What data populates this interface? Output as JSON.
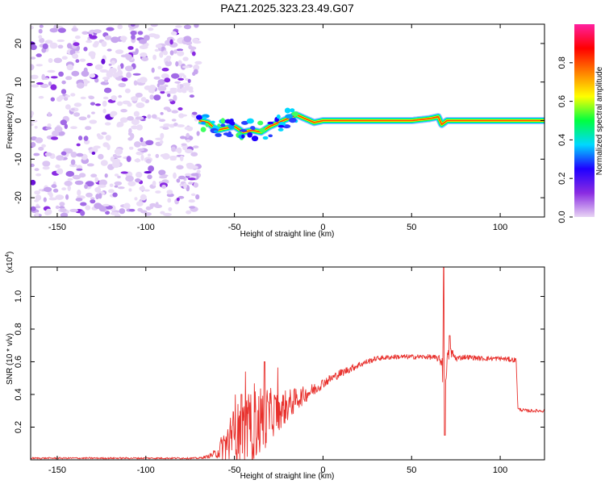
{
  "title": "PAZ1.2025.323.23.49.G07",
  "chart_data": [
    {
      "type": "heatmap",
      "name": "spectrogram",
      "xlabel": "Height of straight line (km)",
      "ylabel": "Frequency (Hz)",
      "xlim": [
        -165,
        125
      ],
      "ylim": [
        -25,
        25
      ],
      "xticks": [
        -150,
        -100,
        -50,
        0,
        50,
        100
      ],
      "yticks": [
        20,
        10,
        0,
        -10,
        -20
      ],
      "noise_region_x": [
        -165,
        -70
      ],
      "ridge": {
        "x": [
          -70,
          -65,
          -60,
          -55,
          -50,
          -45,
          -40,
          -35,
          -30,
          -25,
          -20,
          -15,
          -10,
          -5,
          0,
          5,
          10,
          20,
          30,
          40,
          50,
          60,
          65,
          67,
          70,
          75,
          80,
          90,
          100,
          110,
          120,
          125
        ],
        "freq": [
          0,
          -0.5,
          -2.5,
          -2,
          -1.5,
          -3,
          -2.5,
          -3,
          -1.5,
          -0.5,
          0.5,
          1.5,
          0.5,
          -0.5,
          0,
          0,
          0,
          0,
          0,
          0,
          0,
          0.5,
          1,
          -1,
          0,
          0,
          0,
          0,
          0,
          0,
          0,
          0
        ]
      }
    },
    {
      "type": "colorbar",
      "name": "colorbar",
      "label": "Normalized spectral amplitude",
      "ticks": [
        "0.0",
        "0.2",
        "0.4",
        "0.6",
        "0.8"
      ],
      "tick_values": [
        0.0,
        0.2,
        0.4,
        0.6,
        0.8
      ],
      "range": [
        0,
        1
      ],
      "colors": [
        "#e8d4f4",
        "#8a2be2",
        "#1f00ff",
        "#00d8ff",
        "#00ff40",
        "#ffff00",
        "#ff8000",
        "#ff0000",
        "#ff20a0"
      ]
    },
    {
      "type": "line",
      "name": "snr",
      "xlabel": "Height of straight line (km)",
      "ylabel": "SNR (10 * v/v)",
      "scale_label_base": "(x10",
      "scale_label_exp": "4",
      "scale_label_close": ")",
      "xlim": [
        -165,
        125
      ],
      "ylim": [
        0,
        1.18
      ],
      "xticks": [
        -150,
        -100,
        -50,
        0,
        50,
        100
      ],
      "yticks": [
        0.2,
        0.4,
        0.6,
        0.8,
        1.0
      ],
      "ytick_labels": [
        "0.2",
        "0.4",
        "0.6",
        "0.8",
        "1.0"
      ],
      "color": "#e8302c",
      "envelope": {
        "x": [
          -165,
          -70,
          -65,
          -60,
          -55,
          -50,
          -45,
          -40,
          -35,
          -30,
          -25,
          -20,
          -15,
          -10,
          -5,
          0,
          10,
          20,
          30,
          40,
          50,
          60,
          65,
          67,
          68,
          69,
          70,
          72,
          75,
          80,
          90,
          100,
          109,
          110,
          115,
          125
        ],
        "base": [
          0.01,
          0.01,
          0.02,
          0.04,
          0.1,
          0.15,
          0.18,
          0.2,
          0.24,
          0.28,
          0.3,
          0.33,
          0.37,
          0.4,
          0.43,
          0.47,
          0.53,
          0.58,
          0.62,
          0.63,
          0.63,
          0.63,
          0.62,
          0.6,
          0.62,
          0.55,
          0.62,
          0.66,
          0.62,
          0.63,
          0.62,
          0.62,
          0.61,
          0.31,
          0.3,
          0.3
        ],
        "noise": [
          0.005,
          0.005,
          0.01,
          0.03,
          0.12,
          0.18,
          0.2,
          0.22,
          0.22,
          0.16,
          0.12,
          0.1,
          0.07,
          0.05,
          0.04,
          0.03,
          0.025,
          0.02,
          0.015,
          0.015,
          0.015,
          0.015,
          0.02,
          0.04,
          0.3,
          0.2,
          0.04,
          0.04,
          0.02,
          0.015,
          0.015,
          0.015,
          0.015,
          0.01,
          0.01,
          0.01
        ]
      },
      "peaks": [
        {
          "x": 68.2,
          "y": 1.18
        },
        {
          "x": 68.8,
          "y": 0.15
        },
        {
          "x": 71.5,
          "y": 0.76
        },
        {
          "x": -46,
          "y": 0.4
        },
        {
          "x": -33,
          "y": 0.6
        }
      ]
    }
  ]
}
